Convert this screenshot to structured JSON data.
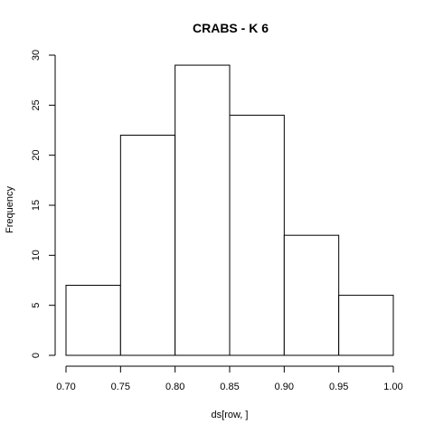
{
  "chart_data": {
    "type": "bar",
    "title": "CRABS - K 6",
    "xlabel": "ds[row, ]",
    "ylabel": "Frequency",
    "bins": [
      {
        "start": 0.7,
        "end": 0.75,
        "count": 7
      },
      {
        "start": 0.75,
        "end": 0.8,
        "count": 22
      },
      {
        "start": 0.8,
        "end": 0.85,
        "count": 29
      },
      {
        "start": 0.85,
        "end": 0.9,
        "count": 24
      },
      {
        "start": 0.9,
        "end": 0.95,
        "count": 12
      },
      {
        "start": 0.95,
        "end": 1.0,
        "count": 6
      }
    ],
    "xlim": [
      0.7,
      1.0
    ],
    "ylim": [
      0,
      30
    ],
    "xticks": [
      "0.70",
      "0.75",
      "0.80",
      "0.85",
      "0.90",
      "0.95",
      "1.00"
    ],
    "yticks": [
      "0",
      "5",
      "10",
      "15",
      "20",
      "25",
      "30"
    ],
    "grid": false,
    "bar_fill": "#ffffff",
    "bar_stroke": "#000000"
  }
}
